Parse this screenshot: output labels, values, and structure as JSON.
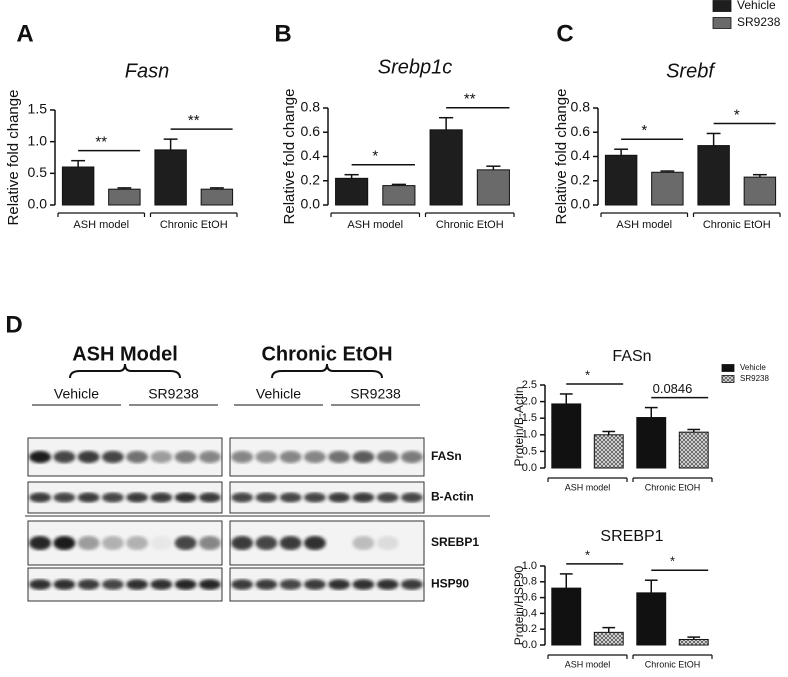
{
  "chart_data": [
    {
      "type": "bar",
      "panel": "A",
      "title": "Fasn",
      "ylabel": "Relative fold change",
      "categories": [
        "ASH model",
        "Chronic EtOH"
      ],
      "series": [
        {
          "color": "#1e1e1e",
          "values": [
            0.6,
            0.87
          ],
          "errors": [
            0.1,
            0.17
          ]
        },
        {
          "color": "#6a6a6a",
          "values": [
            0.25,
            0.25
          ],
          "errors": [
            0.02,
            0.02
          ]
        }
      ],
      "significance": [
        "**",
        "**"
      ],
      "ylim": [
        0,
        1.5
      ],
      "yticks": [
        {
          "value": 0,
          "label": "0.0"
        },
        0.5,
        {
          "value": 1,
          "label": "1.0"
        },
        1.5
      ]
    },
    {
      "type": "bar",
      "panel": "B",
      "title": "Srebp1c",
      "ylabel": "Relative fold change",
      "categories": [
        "ASH model",
        "Chronic EtOH"
      ],
      "series": [
        {
          "color": "#1e1e1e",
          "values": [
            0.22,
            0.62
          ],
          "errors": [
            0.03,
            0.1
          ]
        },
        {
          "color": "#6a6a6a",
          "values": [
            0.16,
            0.29
          ],
          "errors": [
            0.01,
            0.03
          ]
        }
      ],
      "significance": [
        "*",
        "**"
      ],
      "ylim": [
        0,
        0.8
      ],
      "yticks": [
        {
          "value": 0,
          "label": "0.0"
        },
        0.2,
        0.4,
        0.6,
        0.8
      ]
    },
    {
      "type": "bar",
      "panel": "C",
      "title": "Srebf",
      "ylabel": "Relative fold change",
      "categories": [
        "ASH model",
        "Chronic EtOH"
      ],
      "series": [
        {
          "name": "Vehicle",
          "color": "#1e1e1e",
          "values": [
            0.41,
            0.49
          ],
          "errors": [
            0.05,
            0.1
          ]
        },
        {
          "name": "SR9238",
          "color": "#6a6a6a",
          "values": [
            0.27,
            0.23
          ],
          "errors": [
            0.01,
            0.02
          ]
        }
      ],
      "significance": [
        "*",
        "*"
      ],
      "legend": "top right",
      "ylim": [
        0,
        0.8
      ],
      "yticks": [
        {
          "value": 0,
          "label": "0.0"
        },
        0.2,
        0.4,
        0.6,
        0.8
      ]
    },
    {
      "type": "bar",
      "title": "FASn",
      "ylabel": "Protein/B-Actin",
      "categories": [
        "ASH model",
        "Chronic EtOH"
      ],
      "series": [
        {
          "name": "Vehicle",
          "color": "#111111",
          "values": [
            1.93,
            1.52
          ],
          "errors": [
            0.3,
            0.3
          ]
        },
        {
          "name": "SR9238",
          "color": "#9a9a9a",
          "hatch": true,
          "values": [
            1.0,
            1.08
          ],
          "errors": [
            0.1,
            0.08
          ]
        }
      ],
      "significance": [
        "*",
        "0.0846"
      ],
      "legend": "right",
      "ylim": [
        0,
        2.5
      ],
      "yticks": [
        {
          "value": 0,
          "label": "0.0"
        },
        0.5,
        {
          "value": 1,
          "label": "1.0"
        },
        1.5,
        {
          "value": 2,
          "label": "2.0"
        },
        2.5
      ]
    },
    {
      "type": "bar",
      "title": "SREBP1",
      "ylabel": "Protein/HSP90",
      "categories": [
        "ASH model",
        "Chronic EtOH"
      ],
      "series": [
        {
          "color": "#111111",
          "values": [
            0.72,
            0.66
          ],
          "errors": [
            0.18,
            0.16
          ]
        },
        {
          "color": "#9a9a9a",
          "hatch": true,
          "values": [
            0.16,
            0.07
          ],
          "errors": [
            0.06,
            0.03
          ]
        }
      ],
      "significance": [
        "*",
        "*"
      ],
      "ylim": [
        0,
        1
      ],
      "yticks": [
        {
          "value": 0,
          "label": "0.0"
        },
        0.2,
        0.4,
        0.6,
        0.8,
        {
          "value": 1,
          "label": "1.0"
        }
      ]
    }
  ],
  "blot": {
    "panel": "D",
    "groups": [
      {
        "title": "ASH Model",
        "treatments": [
          "Vehicle",
          "SR9238"
        ]
      },
      {
        "title": "Chronic EtOH",
        "treatments": [
          "Vehicle",
          "SR9238"
        ]
      }
    ],
    "proteins": [
      "FASn",
      "B-Actin",
      "SREBP1",
      "HSP90"
    ]
  }
}
